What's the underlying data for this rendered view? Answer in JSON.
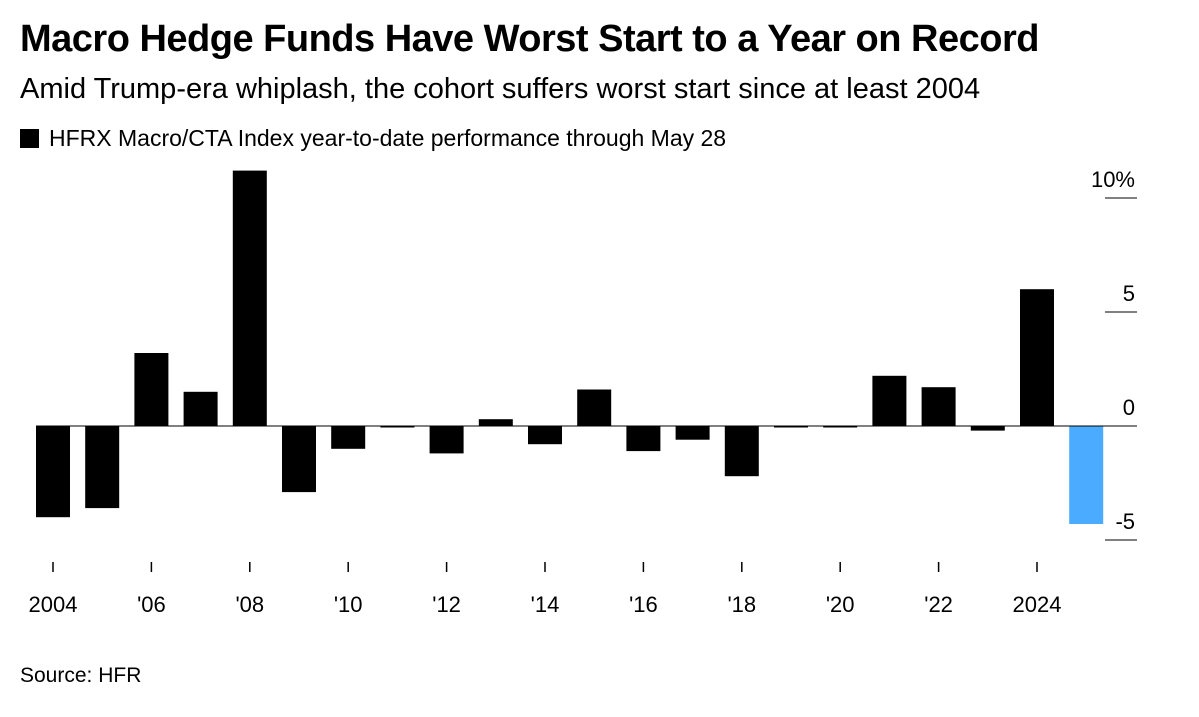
{
  "title": "Macro Hedge Funds Have Worst Start to a Year on Record",
  "subtitle": "Amid Trump-era whiplash, the cohort suffers worst start since at least 2004",
  "legend_label": "HFRX Macro/CTA Index year-to-date performance through May 28",
  "source": "Source: HFR",
  "colors": {
    "bar": "#000000",
    "highlight": "#4aabff",
    "axis": "#000000"
  },
  "chart_data": {
    "type": "bar",
    "title": "Macro Hedge Funds Have Worst Start to a Year on Record",
    "subtitle": "Amid Trump-era whiplash, the cohort suffers worst start since at least 2004",
    "xlabel": "",
    "ylabel": "",
    "ylim": [
      -5,
      10
    ],
    "y_axis_position": "right",
    "grid": false,
    "categories": [
      2004,
      2005,
      2006,
      2007,
      2008,
      2009,
      2010,
      2011,
      2012,
      2013,
      2014,
      2015,
      2016,
      2017,
      2018,
      2019,
      2020,
      2021,
      2022,
      2023,
      2024,
      2025
    ],
    "series": [
      {
        "name": "HFRX Macro/CTA Index year-to-date performance through May 28",
        "values": [
          -4.0,
          -3.6,
          3.2,
          1.5,
          11.2,
          -2.9,
          -1.0,
          -0.1,
          -1.2,
          0.3,
          -0.8,
          1.6,
          -1.1,
          -0.6,
          -2.2,
          -0.1,
          -0.1,
          2.2,
          1.7,
          -0.2,
          6.0,
          -4.3
        ]
      }
    ],
    "highlight_index": 21,
    "y_ticks": [
      {
        "value": 10,
        "label": "10%"
      },
      {
        "value": 5,
        "label": "5"
      },
      {
        "value": 0,
        "label": "0"
      },
      {
        "value": -5,
        "label": "-5"
      }
    ],
    "x_ticks": [
      {
        "value": 2004,
        "label": "2004"
      },
      {
        "value": 2006,
        "label": "'06"
      },
      {
        "value": 2008,
        "label": "'08"
      },
      {
        "value": 2010,
        "label": "'10"
      },
      {
        "value": 2012,
        "label": "'12"
      },
      {
        "value": 2014,
        "label": "'14"
      },
      {
        "value": 2016,
        "label": "'16"
      },
      {
        "value": 2018,
        "label": "'18"
      },
      {
        "value": 2020,
        "label": "'20"
      },
      {
        "value": 2022,
        "label": "'22"
      },
      {
        "value": 2024,
        "label": "2024"
      }
    ]
  }
}
